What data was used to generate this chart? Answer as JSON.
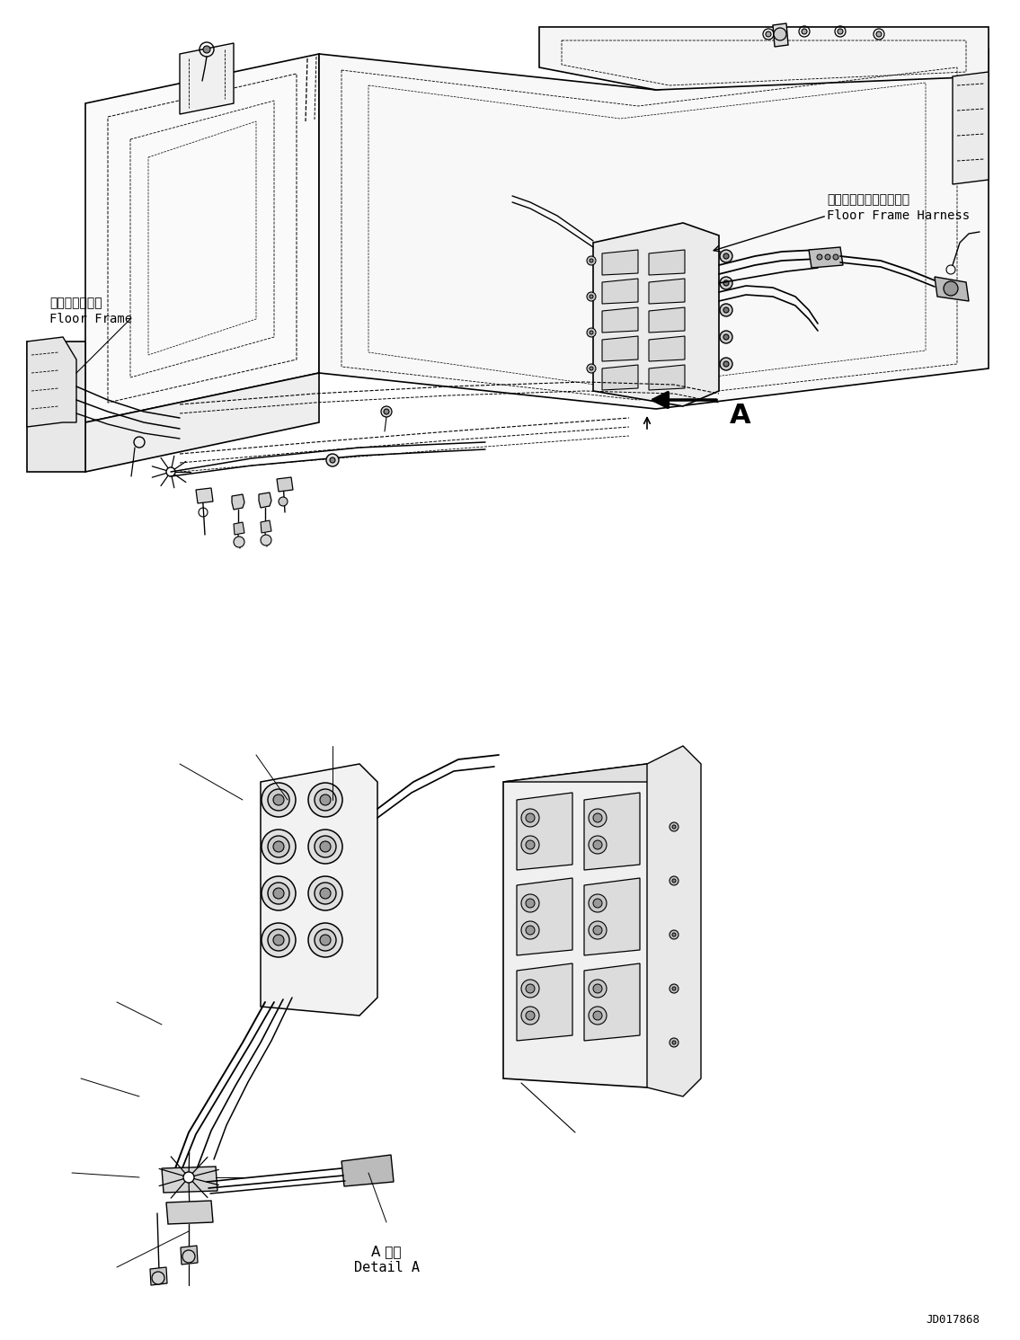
{
  "bg_color": "#ffffff",
  "line_color": "#000000",
  "figure_width": 11.35,
  "figure_height": 14.91,
  "dpi": 100,
  "label_floor_frame_jp": "フロアフレーム",
  "label_floor_frame_en": "Floor Frame",
  "label_harness_jp": "フロアフレームハーネス",
  "label_harness_en": "Floor Frame Harness",
  "label_detail_jp": "A 詳細",
  "label_detail_en": "Detail A",
  "label_A": "A",
  "label_doc": "JD017868"
}
